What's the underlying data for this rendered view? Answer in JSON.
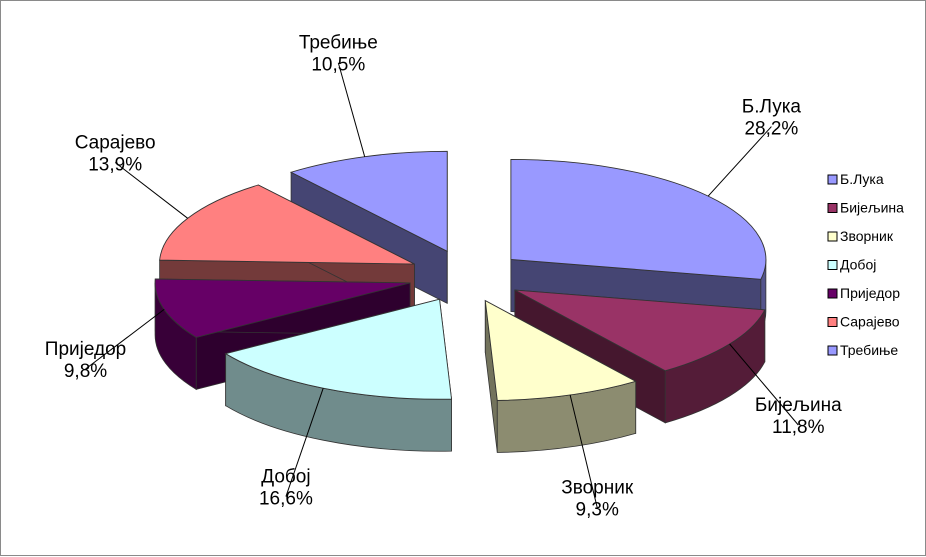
{
  "chart_data": {
    "type": "pie",
    "title": "",
    "categories": [
      "Б.Лука",
      "Бијељина",
      "Зворник",
      "Добој",
      "Приједор",
      "Сарајево",
      "Требиње"
    ],
    "values": [
      28.2,
      11.8,
      9.3,
      16.6,
      9.8,
      13.9,
      10.5
    ],
    "value_labels": [
      "28,2%",
      "11,8%",
      "9,3%",
      "16,6%",
      "9,8%",
      "13,9%",
      "10,5%"
    ],
    "colors": [
      "#9999ff",
      "#993366",
      "#ffffcc",
      "#ccffff",
      "#660066",
      "#ff8080",
      "#9999ff"
    ],
    "legend_position": "right",
    "style": "exploded-3d"
  }
}
